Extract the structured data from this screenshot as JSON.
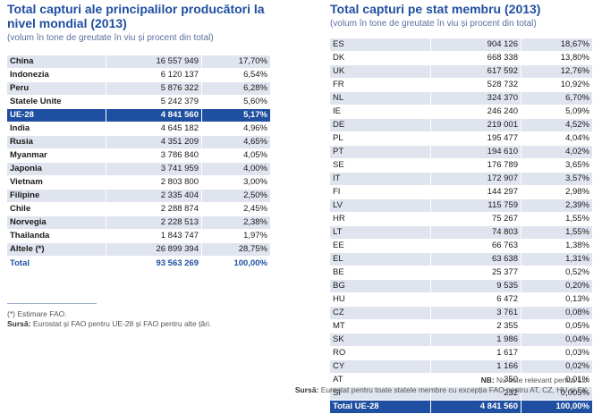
{
  "left": {
    "title": "Total capturi ale principalilor producători la nivel mondial (2013)",
    "subtitle": "(volum în tone de greutate în viu și procent din total)",
    "rows": [
      {
        "name": "China",
        "value": "16 557 949",
        "pct": "17,70%"
      },
      {
        "name": "Indonezia",
        "value": "6 120 137",
        "pct": "6,54%"
      },
      {
        "name": "Peru",
        "value": "5 876 322",
        "pct": "6,28%"
      },
      {
        "name": "Statele Unite",
        "value": "5 242 379",
        "pct": "5,60%"
      },
      {
        "name": "UE-28",
        "value": "4 841 560",
        "pct": "5,17%",
        "highlight": true
      },
      {
        "name": "India",
        "value": "4 645 182",
        "pct": "4,96%"
      },
      {
        "name": "Rusia",
        "value": "4 351 209",
        "pct": "4,65%"
      },
      {
        "name": "Myanmar",
        "value": "3 786 840",
        "pct": "4,05%"
      },
      {
        "name": "Japonia",
        "value": "3 741 959",
        "pct": "4,00%"
      },
      {
        "name": "Vietnam",
        "value": "2 803 800",
        "pct": "3,00%"
      },
      {
        "name": "Filipine",
        "value": "2 335 404",
        "pct": "2,50%"
      },
      {
        "name": "Chile",
        "value": "2 288 874",
        "pct": "2,45%"
      },
      {
        "name": "Norvegia",
        "value": "2 228 513",
        "pct": "2,38%"
      },
      {
        "name": "Thailanda",
        "value": "1 843 747",
        "pct": "1,97%"
      },
      {
        "name": "Altele (*)",
        "value": "26 899 394",
        "pct": "28,75%"
      }
    ],
    "total": {
      "name": "Total",
      "value": "93 563 269",
      "pct": "100,00%"
    },
    "note1": "(*) Estimare FAO.",
    "source_label": "Sursă:",
    "source_text": "Eurostat și FAO pentru UE-28 și FAO pentru alte țări."
  },
  "right": {
    "title": "Total capturi pe stat membru (2013)",
    "subtitle": "(volum în tone de greutate în viu și procent din total)",
    "rows": [
      {
        "name": "ES",
        "value": "904 126",
        "pct": "18,67%"
      },
      {
        "name": "DK",
        "value": "668 338",
        "pct": "13,80%"
      },
      {
        "name": "UK",
        "value": "617 592",
        "pct": "12,76%"
      },
      {
        "name": "FR",
        "value": "528 732",
        "pct": "10,92%"
      },
      {
        "name": "NL",
        "value": "324 370",
        "pct": "6,70%"
      },
      {
        "name": "IE",
        "value": "246 240",
        "pct": "5,09%"
      },
      {
        "name": "DE",
        "value": "219 001",
        "pct": "4,52%"
      },
      {
        "name": "PL",
        "value": "195 477",
        "pct": "4,04%"
      },
      {
        "name": "PT",
        "value": "194 610",
        "pct": "4,02%"
      },
      {
        "name": "SE",
        "value": "176 789",
        "pct": "3,65%"
      },
      {
        "name": "IT",
        "value": "172 907",
        "pct": "3,57%"
      },
      {
        "name": "FI",
        "value": "144 297",
        "pct": "2,98%"
      },
      {
        "name": "LV",
        "value": "115 759",
        "pct": "2,39%"
      },
      {
        "name": "HR",
        "value": "75 267",
        "pct": "1,55%"
      },
      {
        "name": "LT",
        "value": "74 803",
        "pct": "1,55%"
      },
      {
        "name": "EE",
        "value": "66 763",
        "pct": "1,38%"
      },
      {
        "name": "EL",
        "value": "63 638",
        "pct": "1,31%"
      },
      {
        "name": "BE",
        "value": "25 377",
        "pct": "0,52%"
      },
      {
        "name": "BG",
        "value": "9 535",
        "pct": "0,20%"
      },
      {
        "name": "HU",
        "value": "6 472",
        "pct": "0,13%"
      },
      {
        "name": "CZ",
        "value": "3 761",
        "pct": "0,08%"
      },
      {
        "name": "MT",
        "value": "2 355",
        "pct": "0,05%"
      },
      {
        "name": "SK",
        "value": "1 986",
        "pct": "0,04%"
      },
      {
        "name": "RO",
        "value": "1 617",
        "pct": "0,03%"
      },
      {
        "name": "CY",
        "value": "1 166",
        "pct": "0,02%"
      },
      {
        "name": "AT",
        "value": "350",
        "pct": "0,01%"
      },
      {
        "name": "SI",
        "value": "232",
        "pct": "0,005%"
      }
    ],
    "total": {
      "name": "Total UE-28",
      "value": "4 841 560",
      "pct": "100,00%"
    },
    "nb_label": "NB:",
    "nb_text": "Nu este relevant pentru LU.",
    "source_label": "Sursă:",
    "source_text": "Eurostat pentru toate statele membre cu excepția FAO pentru AT, CZ, HU și SK."
  }
}
